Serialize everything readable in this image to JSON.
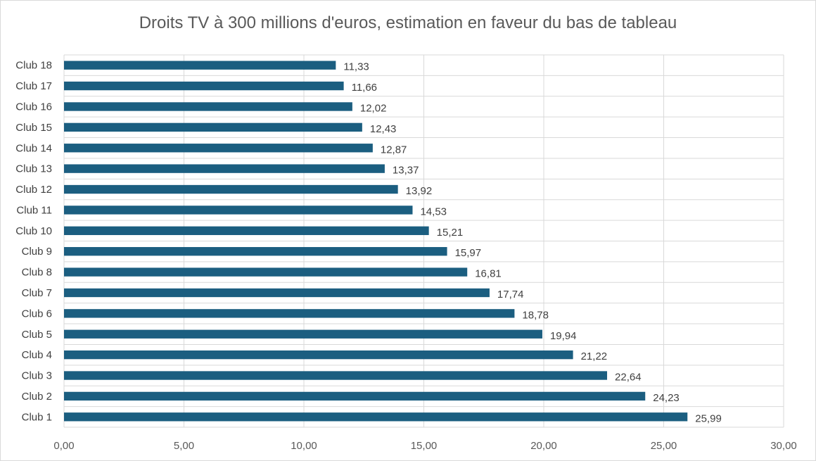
{
  "chart_data": {
    "type": "bar",
    "orientation": "horizontal",
    "title": "Droits TV à 300 millions d'euros, estimation en faveur du bas de tableau",
    "categories": [
      "Club 1",
      "Club 2",
      "Club 3",
      "Club 4",
      "Club 5",
      "Club 6",
      "Club 7",
      "Club 8",
      "Club 9",
      "Club 10",
      "Club 11",
      "Club 12",
      "Club 13",
      "Club 14",
      "Club 15",
      "Club 16",
      "Club 17",
      "Club 18"
    ],
    "values": [
      25.99,
      24.23,
      22.64,
      21.22,
      19.94,
      18.78,
      17.74,
      16.81,
      15.97,
      15.21,
      14.53,
      13.92,
      13.37,
      12.87,
      12.43,
      12.02,
      11.66,
      11.33
    ],
    "data_labels": [
      "25,99",
      "24,23",
      "22,64",
      "21,22",
      "19,94",
      "18,78",
      "17,74",
      "16,81",
      "15,97",
      "15,21",
      "14,53",
      "13,92",
      "13,37",
      "12,87",
      "12,43",
      "12,02",
      "11,66",
      "11,33"
    ],
    "xlim": [
      0,
      30
    ],
    "x_ticks": [
      0,
      5,
      10,
      15,
      20,
      25,
      30
    ],
    "x_tick_labels": [
      "0,00",
      "5,00",
      "10,00",
      "15,00",
      "20,00",
      "25,00",
      "30,00"
    ],
    "grid": true,
    "legend": "none",
    "bar_color": "#1b5e80",
    "grid_color": "#d9d9d9"
  }
}
